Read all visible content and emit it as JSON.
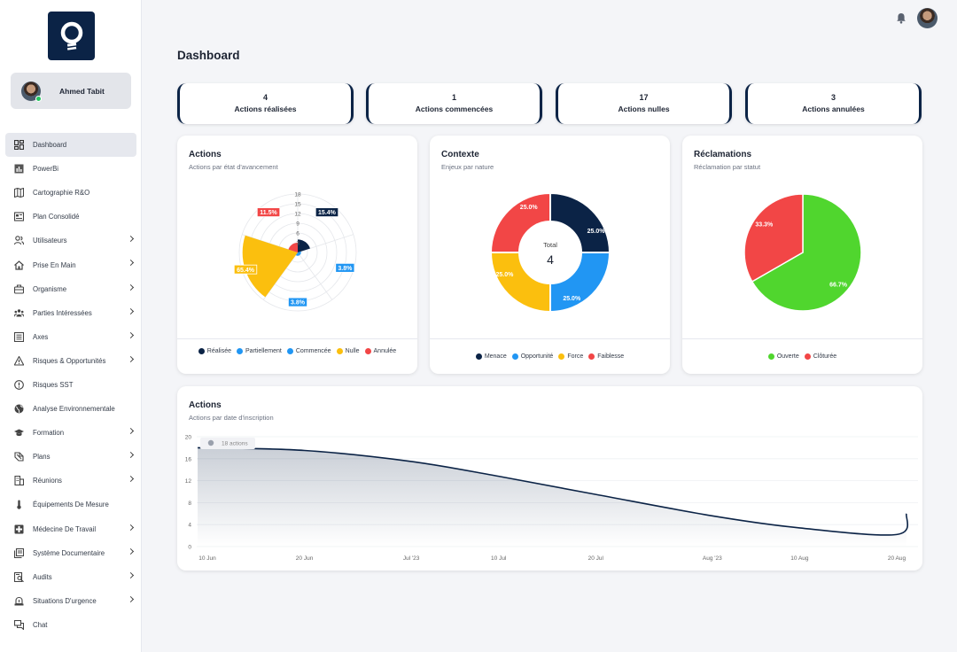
{
  "app": {
    "user_name": "Ahmed Tabit"
  },
  "sidebar": {
    "items": [
      {
        "label": "Dashboard",
        "icon": "dashboard-icon",
        "active": true,
        "chevron": false
      },
      {
        "label": "PowerBi",
        "icon": "bar-chart-icon",
        "chevron": false
      },
      {
        "label": "Cartographie R&O",
        "icon": "map-icon",
        "chevron": false
      },
      {
        "label": "Plan Consolidé",
        "icon": "document-icon",
        "chevron": false
      },
      {
        "label": "Utilisateurs",
        "icon": "users-icon",
        "chevron": true
      },
      {
        "label": "Prise En Main",
        "icon": "home-icon",
        "chevron": true
      },
      {
        "label": "Organisme",
        "icon": "briefcase-icon",
        "chevron": true
      },
      {
        "label": "Parties Intéressées",
        "icon": "group-icon",
        "chevron": true
      },
      {
        "label": "Axes",
        "icon": "list-icon",
        "chevron": true
      },
      {
        "label": "Risques & Opportunités",
        "icon": "warning-icon",
        "chevron": true
      },
      {
        "label": "Risques SST",
        "icon": "alert-circle-icon",
        "chevron": false
      },
      {
        "label": "Analyse Environnementale",
        "icon": "globe-icon",
        "chevron": false
      },
      {
        "label": "Formation",
        "icon": "graduation-cap-icon",
        "chevron": true
      },
      {
        "label": "Plans",
        "icon": "plans-icon",
        "chevron": true
      },
      {
        "label": "Réunions",
        "icon": "building-icon",
        "chevron": true
      },
      {
        "label": "Équipements De Mesure",
        "icon": "thermometer-icon",
        "chevron": false
      },
      {
        "label": "Médecine De Travail",
        "icon": "medical-icon",
        "chevron": true
      },
      {
        "label": "Système Documentaire",
        "icon": "files-icon",
        "chevron": true
      },
      {
        "label": "Audits",
        "icon": "audit-search-icon",
        "chevron": true
      },
      {
        "label": "Situations D'urgence",
        "icon": "siren-icon",
        "chevron": true
      },
      {
        "label": "Chat",
        "icon": "chat-icon",
        "chevron": false
      }
    ]
  },
  "header": {
    "title": "Dashboard"
  },
  "kpis": [
    {
      "value": "4",
      "label": "Actions réalisées"
    },
    {
      "value": "1",
      "label": "Actions commencées"
    },
    {
      "value": "17",
      "label": "Actions nulles"
    },
    {
      "value": "3",
      "label": "Actions annulées"
    }
  ],
  "colors": {
    "navy": "#0b2346",
    "blue": "#2196f3",
    "yellow": "#fbbf0e",
    "red": "#f24646",
    "green": "#50d62e"
  },
  "panels": {
    "actions": {
      "title": "Actions",
      "subtitle": "Actions par état d'avancement"
    },
    "contexte": {
      "title": "Contexte",
      "subtitle": "Enjeux par nature",
      "center_label": "Total",
      "center_value": "4"
    },
    "reclamations": {
      "title": "Réclamations",
      "subtitle": "Réclamation par statut"
    },
    "timeline": {
      "title": "Actions",
      "subtitle": "Actions par date d'inscription",
      "tooltip": "18 actions"
    }
  },
  "chart_data": [
    {
      "type": "polar-area",
      "title": "Actions",
      "subtitle": "Actions par état d'avancement",
      "categories": [
        "Réalisée",
        "Partiellement",
        "Commencée",
        "Nulle",
        "Annulée"
      ],
      "values": [
        4,
        1,
        1,
        17,
        3
      ],
      "labels": [
        "15.4%",
        "3.8%",
        "3.8%",
        "65.4%",
        "11.5%"
      ],
      "colors": [
        "#0b2346",
        "#2196f3",
        "#2196f3",
        "#fbbf0e",
        "#f24646"
      ],
      "radial_ticks": [
        3,
        6,
        9,
        12,
        15,
        18
      ],
      "rmax": 18,
      "legend": [
        {
          "name": "Réalisée",
          "color": "#0b2346"
        },
        {
          "name": "Partiellement",
          "color": "#2196f3"
        },
        {
          "name": "Commencée",
          "color": "#2196f3"
        },
        {
          "name": "Nulle",
          "color": "#fbbf0e"
        },
        {
          "name": "Annulée",
          "color": "#f24646"
        }
      ]
    },
    {
      "type": "doughnut",
      "title": "Contexte",
      "subtitle": "Enjeux par nature",
      "categories": [
        "Menace",
        "Opportunité",
        "Force",
        "Faiblesse"
      ],
      "values": [
        1,
        1,
        1,
        1
      ],
      "labels": [
        "25.0%",
        "25.0%",
        "25.0%",
        "25.0%"
      ],
      "colors": [
        "#0b2346",
        "#2196f3",
        "#fbbf0e",
        "#f24646"
      ]
    },
    {
      "type": "pie",
      "title": "Réclamations",
      "subtitle": "Réclamation par statut",
      "categories": [
        "Ouverte",
        "Clôturée"
      ],
      "values": [
        66.7,
        33.3
      ],
      "labels": [
        "66.7%",
        "33.3%"
      ],
      "colors": [
        "#50d62e",
        "#f24646"
      ]
    },
    {
      "type": "area",
      "title": "Actions",
      "subtitle": "Actions par date d'inscription",
      "x_ticks": [
        "10 Jun",
        "20 Jun",
        "Jul '23",
        "10 Jul",
        "20 Jul",
        "Aug '23",
        "10 Aug",
        "20 Aug"
      ],
      "y_ticks": [
        0,
        4,
        8,
        12,
        16,
        20
      ],
      "ylim": [
        0,
        20
      ],
      "x": [
        "2023-06-09",
        "2023-06-20",
        "2023-07-01",
        "2023-07-10",
        "2023-07-20",
        "2023-08-01",
        "2023-08-10",
        "2023-08-20",
        "2023-08-21"
      ],
      "values": [
        18,
        17.5,
        15.5,
        12.8,
        9.5,
        5.6,
        3.4,
        2.2,
        6
      ]
    }
  ]
}
